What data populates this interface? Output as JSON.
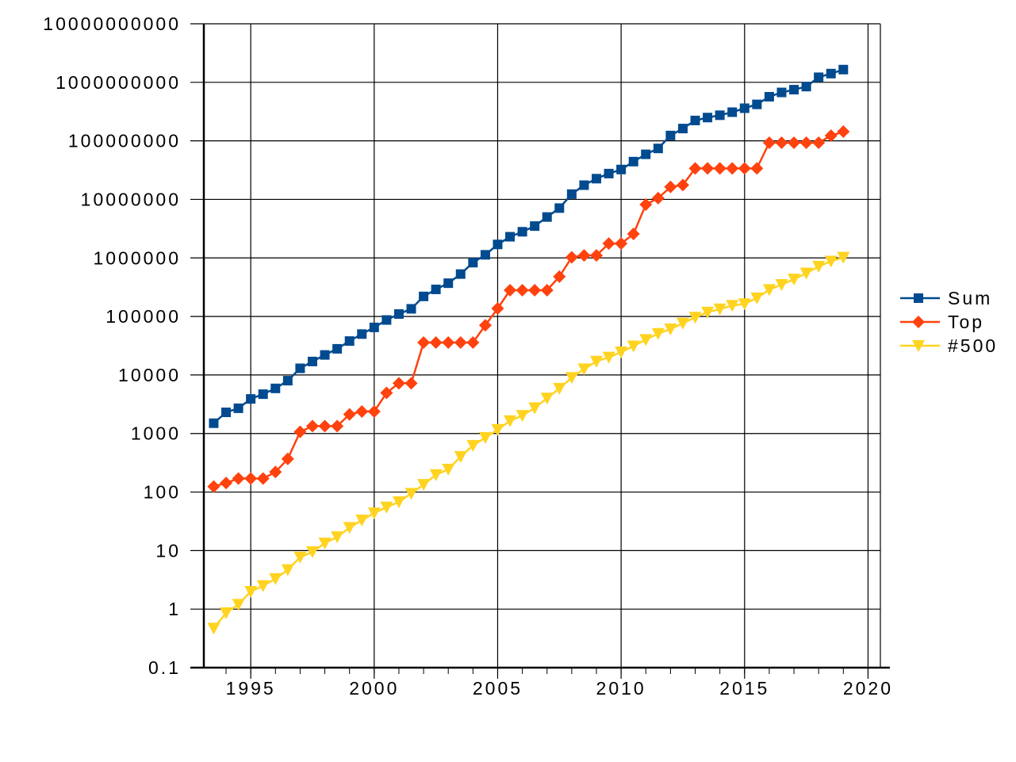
{
  "chart_data": {
    "type": "line",
    "title": "",
    "xlabel": "",
    "ylabel": "",
    "x_ticks": [
      "1995",
      "2000",
      "2005",
      "2010",
      "2015",
      "2020"
    ],
    "y_ticks": [
      "0.1",
      "1",
      "10",
      "100",
      "1000",
      "10000",
      "100000",
      "1000000",
      "10000000",
      "100000000",
      "1000000000",
      "10000000000"
    ],
    "y_scale": "log",
    "xlim": [
      1993.1,
      2020.5
    ],
    "ylim": [
      0.1,
      10000000000
    ],
    "grid": true,
    "legend_position": "right",
    "series": [
      {
        "name": "Sum",
        "color": "#004a8f",
        "marker": "square",
        "x": [
          1993.5,
          1994,
          1994.5,
          1995,
          1995.5,
          1996,
          1996.5,
          1997,
          1997.5,
          1998,
          1998.5,
          1999,
          1999.5,
          2000,
          2000.5,
          2001,
          2001.5,
          2002,
          2002.5,
          2003,
          2003.5,
          2004,
          2004.5,
          2005,
          2005.5,
          2006,
          2006.5,
          2007,
          2007.5,
          2008,
          2008.5,
          2009,
          2009.5,
          2010,
          2010.5,
          2011,
          2011.5,
          2012,
          2012.5,
          2013,
          2013.5,
          2014,
          2014.5,
          2015,
          2015.5,
          2016,
          2016.5,
          2017,
          2017.5,
          2018,
          2018.5,
          2019
        ],
        "values": [
          1500,
          2300,
          2700,
          3900,
          4700,
          5900,
          8000,
          13000,
          17000,
          22000,
          28000,
          38000,
          50000,
          65000,
          87000,
          110000,
          135000,
          220000,
          290000,
          370000,
          530000,
          830000,
          1130000,
          1700000,
          2300000,
          2800000,
          3500000,
          5000000,
          7100000,
          12300000,
          17500000,
          22600000,
          27600000,
          32400000,
          44200000,
          58900000,
          74200000,
          123400000,
          162200000,
          223000000,
          250000000,
          274000000,
          309000000,
          361000000,
          420000000,
          567000000,
          672000000,
          749000000,
          845000000,
          1220000000,
          1410000000,
          1650000000
        ]
      },
      {
        "name": "Top",
        "color": "#ff420e",
        "marker": "diamond",
        "x": [
          1993.5,
          1994,
          1994.5,
          1995,
          1995.5,
          1996,
          1996.5,
          1997,
          1997.5,
          1998,
          1998.5,
          1999,
          1999.5,
          2000,
          2000.5,
          2001,
          2001.5,
          2002,
          2002.5,
          2003,
          2003.5,
          2004,
          2004.5,
          2005,
          2005.5,
          2006,
          2006.5,
          2007,
          2007.5,
          2008,
          2008.5,
          2009,
          2009.5,
          2010,
          2010.5,
          2011,
          2011.5,
          2012,
          2012.5,
          2013,
          2013.5,
          2014,
          2014.5,
          2015,
          2015.5,
          2016,
          2016.5,
          2017,
          2017.5,
          2018,
          2018.5,
          2019
        ],
        "values": [
          124,
          143,
          170,
          170,
          170,
          220,
          368,
          1068,
          1338,
          1338,
          1338,
          2121,
          2379,
          2379,
          4938,
          7226,
          7226,
          35860,
          35860,
          35860,
          35860,
          35860,
          70720,
          136800,
          280600,
          280600,
          280600,
          280600,
          478200,
          1026000,
          1105000,
          1105000,
          1759000,
          1759000,
          2566000,
          8162000,
          10510000,
          16320000,
          17590000,
          33860000,
          33860000,
          33860000,
          33860000,
          33860000,
          33860000,
          93010000,
          93010000,
          93010000,
          93010000,
          93010000,
          122300000,
          143500000
        ]
      },
      {
        "name": "#500",
        "color": "#ffd320",
        "marker": "triangle-down",
        "x": [
          1993.5,
          1994,
          1994.5,
          1995,
          1995.5,
          1996,
          1996.5,
          1997,
          1997.5,
          1998,
          1998.5,
          1999,
          1999.5,
          2000,
          2000.5,
          2001,
          2001.5,
          2002,
          2002.5,
          2003,
          2003.5,
          2004,
          2004.5,
          2005,
          2005.5,
          2006,
          2006.5,
          2007,
          2007.5,
          2008,
          2008.5,
          2009,
          2009.5,
          2010,
          2010.5,
          2011,
          2011.5,
          2012,
          2012.5,
          2013,
          2013.5,
          2014,
          2014.5,
          2015,
          2015.5,
          2016,
          2016.5,
          2017,
          2017.5,
          2018,
          2018.5,
          2019
        ],
        "values": [
          0.47,
          0.86,
          1.2,
          2.0,
          2.5,
          3.3,
          4.7,
          7.7,
          9.5,
          13.4,
          17.1,
          24.7,
          33.1,
          43.8,
          55.1,
          67.8,
          94.3,
          134,
          197,
          245,
          403,
          624,
          851,
          1166,
          1646,
          2026,
          2737,
          4005,
          5900,
          9000,
          12640,
          17090,
          20050,
          24670,
          31120,
          40190,
          50940,
          60820,
          76500,
          96600,
          117800,
          133700,
          153400,
          164000,
          206300,
          286000,
          349300,
          432200,
          548300,
          715600,
          874800,
          1022000
        ]
      }
    ]
  }
}
